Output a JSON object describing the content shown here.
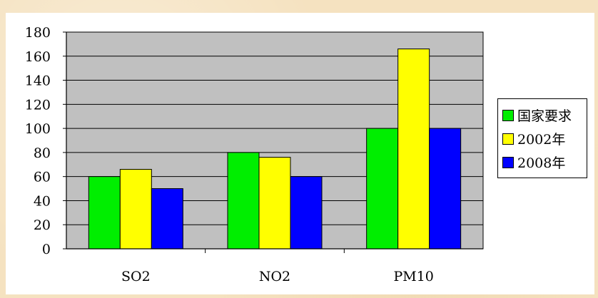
{
  "chart_data": {
    "type": "bar",
    "categories": [
      "SO2",
      "NO2",
      "PM10"
    ],
    "series": [
      {
        "name": "国家要求",
        "values": [
          60,
          80,
          100
        ],
        "color": "#00ee00"
      },
      {
        "name": "2002年",
        "values": [
          66,
          76,
          166
        ],
        "color": "#ffff00"
      },
      {
        "name": "2008年",
        "values": [
          50,
          60,
          100
        ],
        "color": "#0000ff"
      }
    ],
    "ylim": [
      0,
      180
    ],
    "yticks": [
      "0",
      "20",
      "40",
      "60",
      "80",
      "100",
      "120",
      "140",
      "160",
      "180"
    ],
    "grid": true,
    "plot_background": "#c0c0c0",
    "legend_position": "right",
    "title": "",
    "xlabel": "",
    "ylabel": ""
  }
}
